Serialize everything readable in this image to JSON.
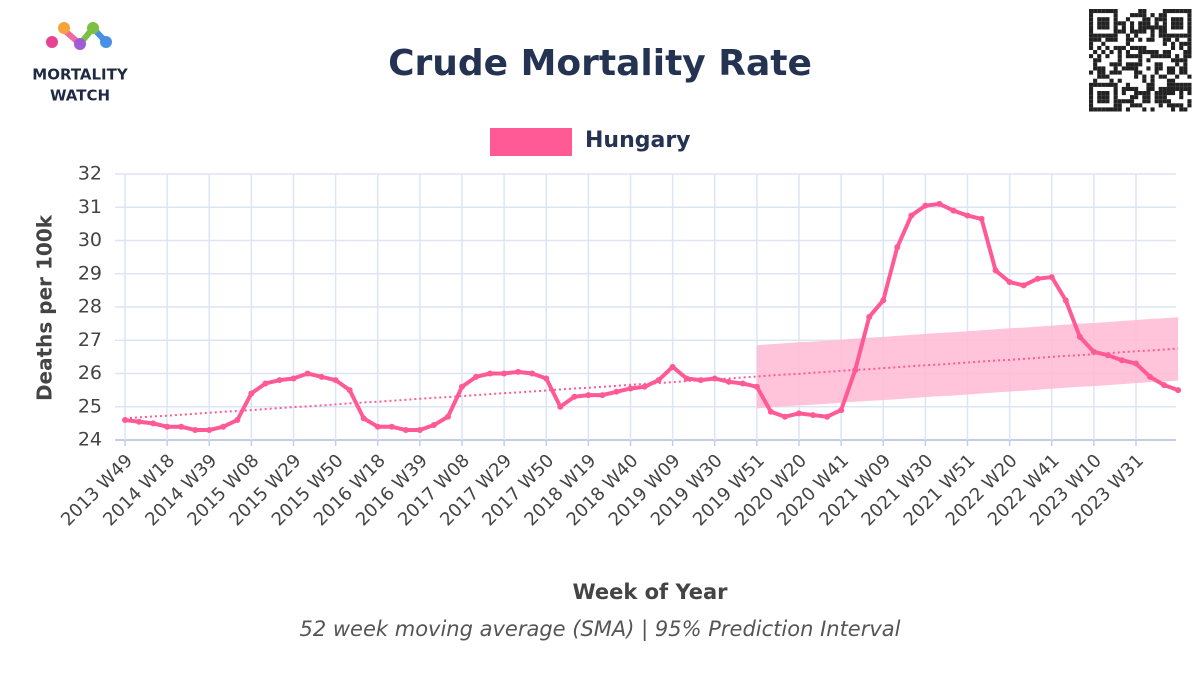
{
  "logo": [
    "MORTALITY",
    "WATCH"
  ],
  "chart_data": {
    "type": "line",
    "title": "Crude Mortality Rate",
    "subtitle": "52 week moving average (SMA) | 95% Prediction Interval",
    "x_label": "Week of Year",
    "y_label": "Deaths per 100k",
    "ylim": [
      24,
      32
    ],
    "yticks": [
      24,
      25,
      26,
      27,
      28,
      29,
      30,
      31,
      32
    ],
    "grid": true,
    "categories": [
      "2013 W49",
      null,
      null,
      "2014 W18",
      null,
      null,
      "2014 W39",
      null,
      null,
      "2015 W08",
      null,
      null,
      "2015 W29",
      null,
      null,
      "2015 W50",
      null,
      null,
      "2016 W18",
      null,
      null,
      "2016 W39",
      null,
      null,
      "2017 W08",
      null,
      null,
      "2017 W29",
      null,
      null,
      "2017 W50",
      null,
      null,
      "2018 W19",
      null,
      null,
      "2018 W40",
      null,
      null,
      "2019 W09",
      null,
      null,
      "2019 W30",
      null,
      null,
      "2019 W51",
      null,
      null,
      "2020 W20",
      null,
      null,
      "2020 W41",
      null,
      null,
      "2021 W09",
      null,
      null,
      "2021 W30",
      null,
      null,
      "2021 W51",
      null,
      null,
      "2022 W20",
      null,
      null,
      "2022 W41",
      null,
      null,
      "2023 W10",
      null,
      null,
      "2023 W31",
      null,
      null,
      null
    ],
    "series": [
      {
        "name": "Hungary",
        "color": "#ff5a96",
        "values": [
          24.6,
          24.55,
          24.5,
          24.4,
          24.4,
          24.3,
          24.3,
          24.4,
          24.6,
          25.4,
          25.7,
          25.8,
          25.85,
          26.0,
          25.9,
          25.8,
          25.5,
          24.65,
          24.4,
          24.4,
          24.3,
          24.3,
          24.45,
          24.7,
          25.6,
          25.9,
          26.0,
          26.0,
          26.05,
          26.0,
          25.85,
          25.0,
          25.3,
          25.35,
          25.35,
          25.45,
          25.55,
          25.6,
          25.8,
          26.2,
          25.85,
          25.8,
          25.85,
          25.75,
          25.7,
          25.6,
          24.85,
          24.7,
          24.8,
          24.75,
          24.7,
          24.9,
          26.1,
          27.7,
          28.2,
          29.8,
          30.75,
          31.05,
          31.1,
          30.9,
          30.75,
          30.65,
          29.1,
          28.75,
          28.65,
          28.85,
          28.9,
          28.2,
          27.1,
          26.65,
          26.55,
          26.4,
          26.3,
          25.9,
          25.65,
          25.5
        ]
      }
    ],
    "trend": {
      "color": "#ff5a96",
      "values": [
        24.65,
        24.68,
        24.71,
        24.73,
        24.76,
        24.79,
        24.82,
        24.85,
        24.87,
        24.9,
        24.93,
        24.96,
        24.99,
        25.01,
        25.04,
        25.07,
        25.1,
        25.13,
        25.15,
        25.18,
        25.21,
        25.24,
        25.27,
        25.29,
        25.32,
        25.35,
        25.38,
        25.41,
        25.43,
        25.46,
        25.49,
        25.52,
        25.55,
        25.57,
        25.6,
        25.63,
        25.66,
        25.69,
        25.71,
        25.74,
        25.77,
        25.8,
        25.83,
        25.85,
        25.88,
        25.91,
        25.94,
        25.97,
        25.99,
        26.02,
        26.05,
        26.08,
        26.11,
        26.13,
        26.16,
        26.19,
        26.22,
        26.25,
        26.27,
        26.3,
        26.33,
        26.36,
        26.39,
        26.41,
        26.44,
        26.47,
        26.5,
        26.53,
        26.55,
        26.58,
        26.61,
        26.64,
        26.67,
        26.69,
        26.72,
        26.75
      ]
    },
    "prediction_interval": {
      "color": "#ffbcd6",
      "upper": [
        null,
        null,
        null,
        null,
        null,
        null,
        null,
        null,
        null,
        null,
        null,
        null,
        null,
        null,
        null,
        null,
        null,
        null,
        null,
        null,
        null,
        null,
        null,
        null,
        null,
        null,
        null,
        null,
        null,
        null,
        null,
        null,
        null,
        null,
        null,
        null,
        null,
        null,
        null,
        null,
        null,
        null,
        null,
        null,
        null,
        26.85,
        26.88,
        26.91,
        26.94,
        26.96,
        26.99,
        27.02,
        27.05,
        27.08,
        27.1,
        27.13,
        27.16,
        27.19,
        27.22,
        27.24,
        27.27,
        27.3,
        27.33,
        27.36,
        27.38,
        27.41,
        27.44,
        27.47,
        27.5,
        27.52,
        27.55,
        27.58,
        27.61,
        27.64,
        27.66,
        27.69
      ],
      "lower": [
        null,
        null,
        null,
        null,
        null,
        null,
        null,
        null,
        null,
        null,
        null,
        null,
        null,
        null,
        null,
        null,
        null,
        null,
        null,
        null,
        null,
        null,
        null,
        null,
        null,
        null,
        null,
        null,
        null,
        null,
        null,
        null,
        null,
        null,
        null,
        null,
        null,
        null,
        null,
        null,
        null,
        null,
        null,
        null,
        null,
        24.95,
        24.98,
        25.01,
        25.04,
        25.06,
        25.09,
        25.12,
        25.15,
        25.18,
        25.2,
        25.23,
        25.26,
        25.29,
        25.32,
        25.34,
        25.37,
        25.4,
        25.43,
        25.46,
        25.48,
        25.51,
        25.54,
        25.57,
        25.6,
        25.62,
        25.65,
        25.68,
        25.71,
        25.74,
        25.76,
        25.79
      ]
    }
  }
}
